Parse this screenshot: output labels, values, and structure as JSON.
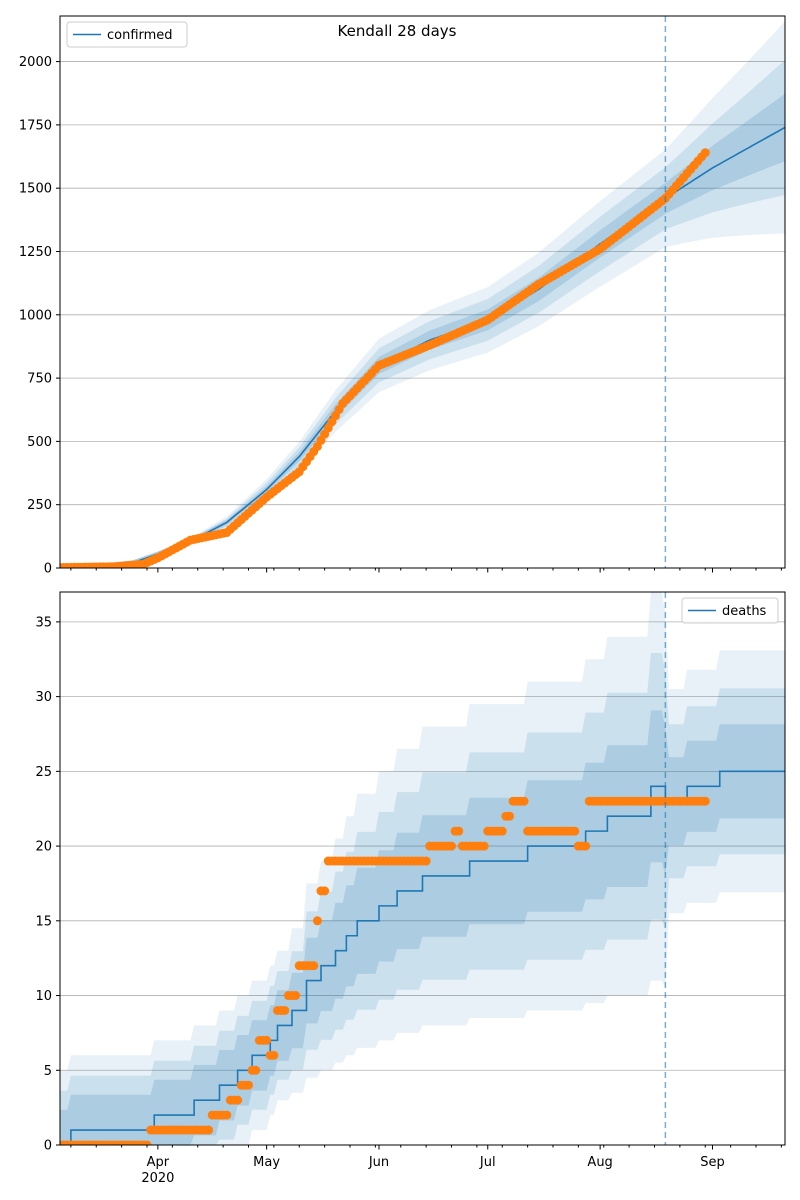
{
  "chart_data": [
    {
      "type": "line",
      "title": "Kendall 28 days",
      "legend": {
        "entries": [
          "confirmed"
        ],
        "placement": "top-left"
      },
      "colors": {
        "model": "#1f77b4",
        "observed": "#ff7f0e",
        "band": "#1f77b4",
        "grid": "#b0b0b0"
      },
      "x_range_days": [
        0,
        200
      ],
      "x_start_date": "2020-03-05",
      "y_range": [
        0,
        2180
      ],
      "y_ticks": [
        0,
        250,
        500,
        750,
        1000,
        1250,
        1500,
        1750,
        2000
      ],
      "grid": "horizontal",
      "forecast_start_date": "2020-08-19",
      "x_ticks": [
        {
          "date": "2020-04-01",
          "label": "Apr"
        },
        {
          "date": "2020-05-01",
          "label": "May"
        },
        {
          "date": "2020-06-01",
          "label": "Jun"
        },
        {
          "date": "2020-07-01",
          "label": "Jul"
        },
        {
          "date": "2020-08-01",
          "label": "Aug"
        },
        {
          "date": "2020-09-01",
          "label": "Sep"
        }
      ],
      "year_label": "2020",
      "series": [
        {
          "name": "confirmed",
          "kind": "model",
          "x": [
            "2020-03-05",
            "2020-03-15",
            "2020-03-25",
            "2020-04-01",
            "2020-04-10",
            "2020-04-20",
            "2020-05-01",
            "2020-05-10",
            "2020-05-20",
            "2020-06-01",
            "2020-06-15",
            "2020-07-01",
            "2020-07-15",
            "2020-08-01",
            "2020-08-19",
            "2020-09-01",
            "2020-09-21"
          ],
          "y": [
            2,
            5,
            20,
            55,
            105,
            180,
            310,
            440,
            620,
            800,
            900,
            980,
            1100,
            1280,
            1460,
            1580,
            1740
          ]
        },
        {
          "name": "observed",
          "kind": "points",
          "x": [
            "2020-03-05",
            "2020-03-20",
            "2020-03-28",
            "2020-04-01",
            "2020-04-10",
            "2020-04-20",
            "2020-05-01",
            "2020-05-10",
            "2020-05-15",
            "2020-05-22",
            "2020-06-01",
            "2020-06-15",
            "2020-07-01",
            "2020-07-15",
            "2020-08-01",
            "2020-08-19",
            "2020-08-30"
          ],
          "y": [
            2,
            5,
            15,
            40,
            110,
            140,
            280,
            380,
            480,
            650,
            800,
            880,
            980,
            1120,
            1260,
            1460,
            1640
          ]
        }
      ]
    },
    {
      "type": "line",
      "title": "",
      "legend": {
        "entries": [
          "deaths"
        ],
        "placement": "top-right"
      },
      "colors": {
        "model": "#1f77b4",
        "observed": "#ff7f0e",
        "band": "#1f77b4",
        "grid": "#b0b0b0"
      },
      "x_range_days": [
        0,
        200
      ],
      "x_start_date": "2020-03-05",
      "y_range": [
        0,
        37
      ],
      "y_ticks": [
        0,
        5,
        10,
        15,
        20,
        25,
        30,
        35
      ],
      "grid": "horizontal",
      "forecast_start_date": "2020-08-19",
      "x_ticks": [
        {
          "date": "2020-04-01",
          "label": "Apr"
        },
        {
          "date": "2020-05-01",
          "label": "May"
        },
        {
          "date": "2020-06-01",
          "label": "Jun"
        },
        {
          "date": "2020-07-01",
          "label": "Jul"
        },
        {
          "date": "2020-08-01",
          "label": "Aug"
        },
        {
          "date": "2020-09-01",
          "label": "Sep"
        }
      ],
      "year_label": "2020",
      "series": [
        {
          "name": "deaths",
          "kind": "model-step",
          "x": [
            "2020-03-05",
            "2020-03-08",
            "2020-03-31",
            "2020-04-11",
            "2020-04-18",
            "2020-04-23",
            "2020-04-27",
            "2020-05-02",
            "2020-05-04",
            "2020-05-08",
            "2020-05-12",
            "2020-05-16",
            "2020-05-20",
            "2020-05-23",
            "2020-05-26",
            "2020-06-01",
            "2020-06-06",
            "2020-06-13",
            "2020-06-26",
            "2020-07-12",
            "2020-07-28",
            "2020-08-03",
            "2020-08-15",
            "2020-08-19",
            "2020-08-25",
            "2020-09-03",
            "2020-09-21"
          ],
          "y": [
            0,
            1,
            2,
            3,
            4,
            5,
            6,
            7,
            8,
            9,
            11,
            12,
            13,
            14,
            15,
            16,
            17,
            18,
            19,
            20,
            21,
            22,
            24,
            23,
            24,
            25,
            25
          ]
        },
        {
          "name": "observed",
          "kind": "points",
          "x": [
            "2020-03-05",
            "2020-03-29",
            "2020-03-30",
            "2020-04-16",
            "2020-04-19",
            "2020-04-21",
            "2020-04-24",
            "2020-04-27",
            "2020-04-29",
            "2020-05-02",
            "2020-05-04",
            "2020-05-07",
            "2020-05-10",
            "2020-05-12",
            "2020-05-15",
            "2020-05-16",
            "2020-05-17",
            "2020-05-18",
            "2020-06-15",
            "2020-06-22",
            "2020-06-24",
            "2020-07-01",
            "2020-07-06",
            "2020-07-08",
            "2020-07-12",
            "2020-07-26",
            "2020-07-29",
            "2020-08-30"
          ],
          "y": [
            0,
            0,
            1,
            2,
            2,
            3,
            4,
            5,
            7,
            6,
            9,
            10,
            12,
            12,
            15,
            17,
            17,
            19,
            20,
            21,
            20,
            21,
            22,
            23,
            21,
            20,
            23,
            23
          ]
        }
      ]
    }
  ]
}
